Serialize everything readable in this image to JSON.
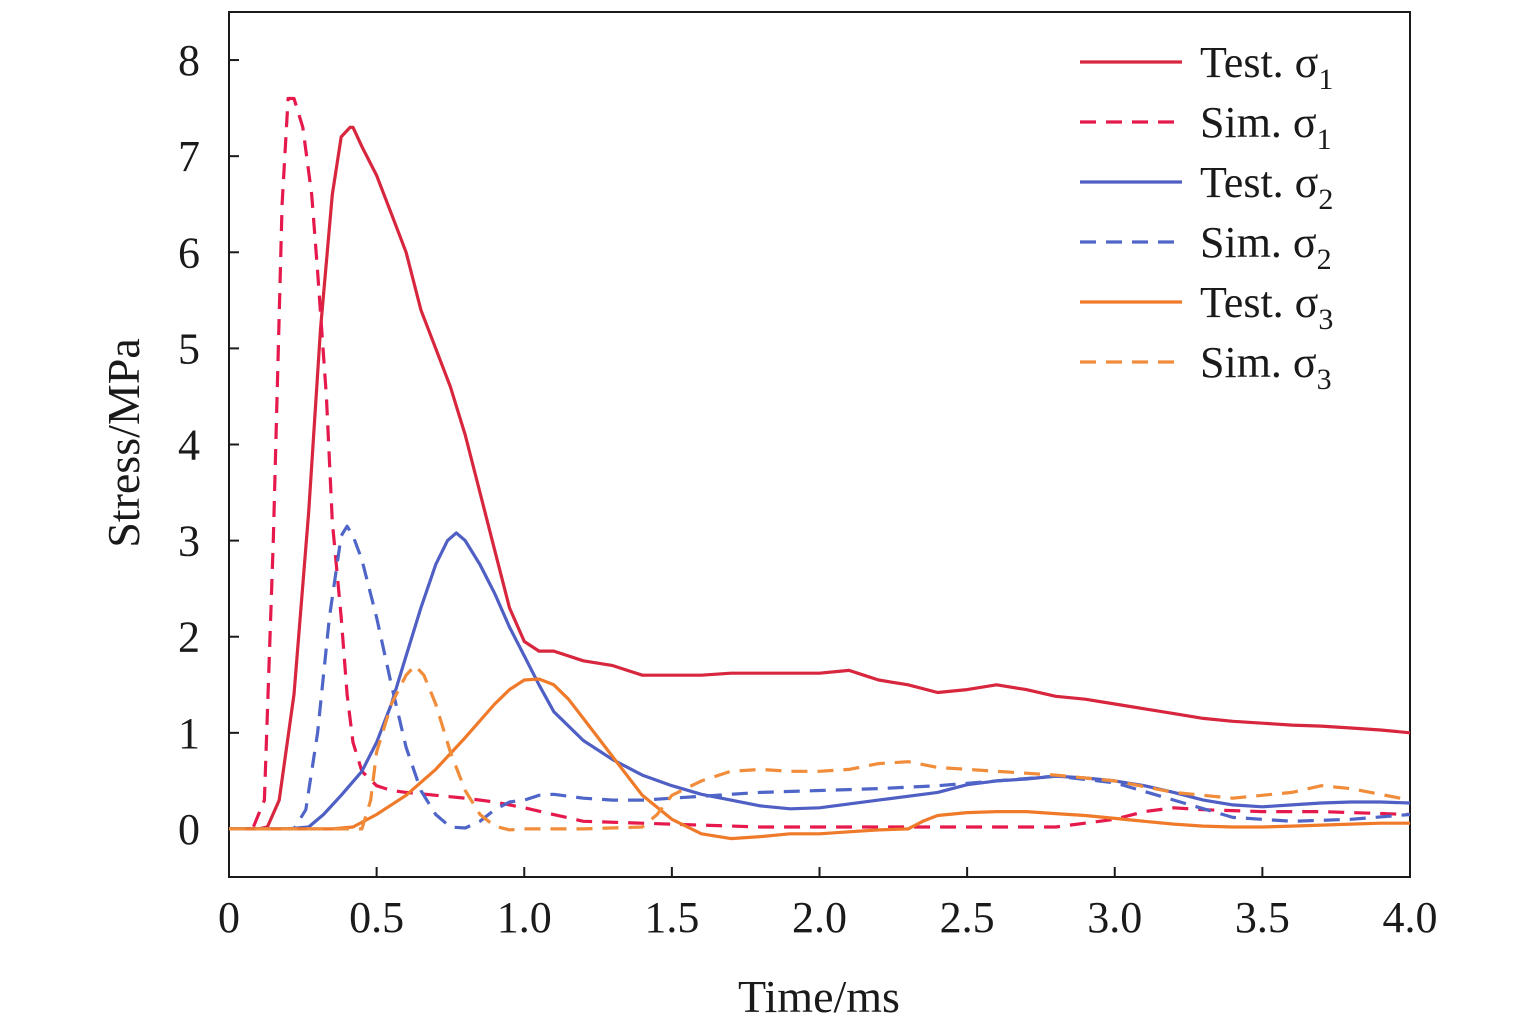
{
  "chart_data": {
    "type": "line",
    "xlabel": "Time/ms",
    "ylabel": "Stress/MPa",
    "xlim": [
      0,
      4.0
    ],
    "ylim": [
      -0.5,
      8.5
    ],
    "xticks": [
      "0",
      "0.5",
      "1.0",
      "1.5",
      "2.0",
      "2.5",
      "3.0",
      "3.5",
      "4.0"
    ],
    "yticks": [
      "0",
      "1",
      "2",
      "3",
      "4",
      "5",
      "6",
      "7",
      "8"
    ],
    "grid": false,
    "legend_position": "top-right",
    "series": [
      {
        "name": "Test. σ1",
        "label_main": "Test. σ",
        "label_sub": "1",
        "color": "#d7263d",
        "dash": "solid",
        "x": [
          0,
          0.1,
          0.13,
          0.17,
          0.22,
          0.27,
          0.31,
          0.35,
          0.38,
          0.41,
          0.42,
          0.45,
          0.5,
          0.55,
          0.6,
          0.65,
          0.7,
          0.75,
          0.8,
          0.85,
          0.9,
          0.95,
          1.0,
          1.05,
          1.1,
          1.2,
          1.3,
          1.4,
          1.5,
          1.6,
          1.7,
          1.8,
          1.9,
          2.0,
          2.1,
          2.15,
          2.2,
          2.3,
          2.4,
          2.5,
          2.6,
          2.7,
          2.8,
          2.9,
          3.0,
          3.1,
          3.2,
          3.3,
          3.4,
          3.5,
          3.6,
          3.7,
          3.8,
          3.9,
          4.0
        ],
        "y": [
          0,
          0,
          0.02,
          0.3,
          1.4,
          3.3,
          5.2,
          6.6,
          7.2,
          7.3,
          7.3,
          7.1,
          6.8,
          6.4,
          6.0,
          5.4,
          5.0,
          4.6,
          4.1,
          3.5,
          2.9,
          2.3,
          1.95,
          1.85,
          1.85,
          1.75,
          1.7,
          1.6,
          1.6,
          1.6,
          1.62,
          1.62,
          1.62,
          1.62,
          1.65,
          1.6,
          1.55,
          1.5,
          1.42,
          1.45,
          1.5,
          1.45,
          1.38,
          1.35,
          1.3,
          1.25,
          1.2,
          1.15,
          1.12,
          1.1,
          1.08,
          1.07,
          1.05,
          1.03,
          1.0
        ]
      },
      {
        "name": "Sim. σ1",
        "label_main": "Sim. σ",
        "label_sub": "1",
        "color": "#e5194b",
        "dash": "dashed",
        "x": [
          0,
          0.08,
          0.12,
          0.15,
          0.18,
          0.2,
          0.22,
          0.25,
          0.28,
          0.3,
          0.33,
          0.35,
          0.38,
          0.4,
          0.42,
          0.45,
          0.5,
          0.55,
          0.6,
          0.7,
          0.8,
          0.9,
          1.0,
          1.2,
          1.4,
          1.6,
          1.8,
          2.0,
          2.2,
          2.4,
          2.6,
          2.8,
          3.0,
          3.1,
          3.2,
          3.3,
          3.5,
          3.7,
          4.0
        ],
        "y": [
          0,
          0,
          0.3,
          3.0,
          6.5,
          7.6,
          7.6,
          7.3,
          6.6,
          5.8,
          4.5,
          3.2,
          2.2,
          1.4,
          0.9,
          0.6,
          0.45,
          0.4,
          0.38,
          0.35,
          0.32,
          0.28,
          0.22,
          0.08,
          0.06,
          0.04,
          0.02,
          0.02,
          0.02,
          0.02,
          0.02,
          0.02,
          0.1,
          0.18,
          0.22,
          0.2,
          0.18,
          0.18,
          0.15
        ]
      },
      {
        "name": "Test. σ2",
        "label_main": "Test. σ",
        "label_sub": "2",
        "color": "#4f5fc4",
        "dash": "solid",
        "x": [
          0,
          0.2,
          0.27,
          0.32,
          0.38,
          0.45,
          0.5,
          0.55,
          0.6,
          0.65,
          0.7,
          0.74,
          0.77,
          0.8,
          0.85,
          0.9,
          0.95,
          1.0,
          1.05,
          1.1,
          1.2,
          1.3,
          1.4,
          1.5,
          1.6,
          1.7,
          1.8,
          1.9,
          2.0,
          2.2,
          2.4,
          2.5,
          2.6,
          2.7,
          2.8,
          2.9,
          3.0,
          3.1,
          3.2,
          3.3,
          3.4,
          3.5,
          3.6,
          3.7,
          3.8,
          3.9,
          4.0
        ],
        "y": [
          0,
          0,
          0.02,
          0.15,
          0.35,
          0.6,
          0.9,
          1.3,
          1.8,
          2.3,
          2.75,
          3.0,
          3.08,
          3.0,
          2.75,
          2.45,
          2.1,
          1.8,
          1.5,
          1.22,
          0.92,
          0.72,
          0.56,
          0.45,
          0.36,
          0.3,
          0.24,
          0.21,
          0.22,
          0.3,
          0.38,
          0.46,
          0.5,
          0.52,
          0.55,
          0.53,
          0.5,
          0.45,
          0.38,
          0.3,
          0.25,
          0.23,
          0.25,
          0.27,
          0.28,
          0.28,
          0.27
        ]
      },
      {
        "name": "Sim. σ2",
        "label_main": "Sim. σ",
        "label_sub": "2",
        "color": "#4f66c8",
        "dash": "dashed",
        "x": [
          0,
          0.22,
          0.26,
          0.3,
          0.34,
          0.38,
          0.4,
          0.42,
          0.45,
          0.5,
          0.55,
          0.6,
          0.65,
          0.7,
          0.75,
          0.8,
          0.85,
          0.9,
          0.95,
          1.0,
          1.05,
          1.1,
          1.2,
          1.3,
          1.4,
          1.5,
          1.6,
          1.7,
          1.8,
          2.0,
          2.2,
          2.4,
          2.6,
          2.8,
          3.0,
          3.2,
          3.4,
          3.6,
          3.8,
          4.0
        ],
        "y": [
          0,
          0,
          0.2,
          1.0,
          2.2,
          3.05,
          3.15,
          3.05,
          2.8,
          2.2,
          1.5,
          0.85,
          0.4,
          0.15,
          0.02,
          0.01,
          0.08,
          0.2,
          0.28,
          0.3,
          0.35,
          0.36,
          0.32,
          0.3,
          0.3,
          0.32,
          0.34,
          0.36,
          0.38,
          0.4,
          0.42,
          0.45,
          0.5,
          0.55,
          0.48,
          0.3,
          0.12,
          0.08,
          0.1,
          0.15
        ]
      },
      {
        "name": "Test. σ3",
        "label_main": "Test. σ",
        "label_sub": "3",
        "color": "#ef7a2a",
        "dash": "solid",
        "x": [
          0,
          0.35,
          0.42,
          0.5,
          0.6,
          0.7,
          0.8,
          0.9,
          0.95,
          1.0,
          1.05,
          1.1,
          1.15,
          1.2,
          1.3,
          1.4,
          1.5,
          1.6,
          1.7,
          1.8,
          1.9,
          2.0,
          2.1,
          2.2,
          2.3,
          2.35,
          2.4,
          2.5,
          2.6,
          2.7,
          2.8,
          2.9,
          3.0,
          3.1,
          3.2,
          3.3,
          3.4,
          3.5,
          3.6,
          3.7,
          3.8,
          3.9,
          4.0
        ],
        "y": [
          0,
          0,
          0.02,
          0.15,
          0.35,
          0.62,
          0.95,
          1.3,
          1.45,
          1.55,
          1.56,
          1.5,
          1.35,
          1.15,
          0.75,
          0.35,
          0.1,
          -0.05,
          -0.1,
          -0.08,
          -0.05,
          -0.05,
          -0.03,
          -0.01,
          0.0,
          0.08,
          0.14,
          0.17,
          0.18,
          0.18,
          0.16,
          0.14,
          0.11,
          0.08,
          0.05,
          0.03,
          0.02,
          0.02,
          0.03,
          0.04,
          0.05,
          0.06,
          0.06
        ]
      },
      {
        "name": "Sim. σ3",
        "label_main": "Sim. σ",
        "label_sub": "3",
        "color": "#f08c3a",
        "dash": "dashed",
        "x": [
          0,
          0.45,
          0.48,
          0.5,
          0.55,
          0.6,
          0.63,
          0.66,
          0.7,
          0.75,
          0.8,
          0.85,
          0.9,
          0.95,
          1.0,
          1.2,
          1.4,
          1.45,
          1.5,
          1.6,
          1.7,
          1.8,
          1.9,
          2.0,
          2.1,
          2.2,
          2.3,
          2.4,
          2.6,
          2.8,
          3.0,
          3.2,
          3.4,
          3.6,
          3.7,
          3.8,
          4.0
        ],
        "y": [
          0,
          0,
          0.3,
          0.8,
          1.3,
          1.6,
          1.7,
          1.6,
          1.3,
          0.8,
          0.4,
          0.15,
          0.03,
          -0.01,
          0.0,
          0.0,
          0.02,
          0.15,
          0.35,
          0.5,
          0.6,
          0.62,
          0.6,
          0.6,
          0.62,
          0.68,
          0.7,
          0.64,
          0.6,
          0.56,
          0.5,
          0.38,
          0.32,
          0.38,
          0.45,
          0.42,
          0.3
        ]
      }
    ]
  }
}
